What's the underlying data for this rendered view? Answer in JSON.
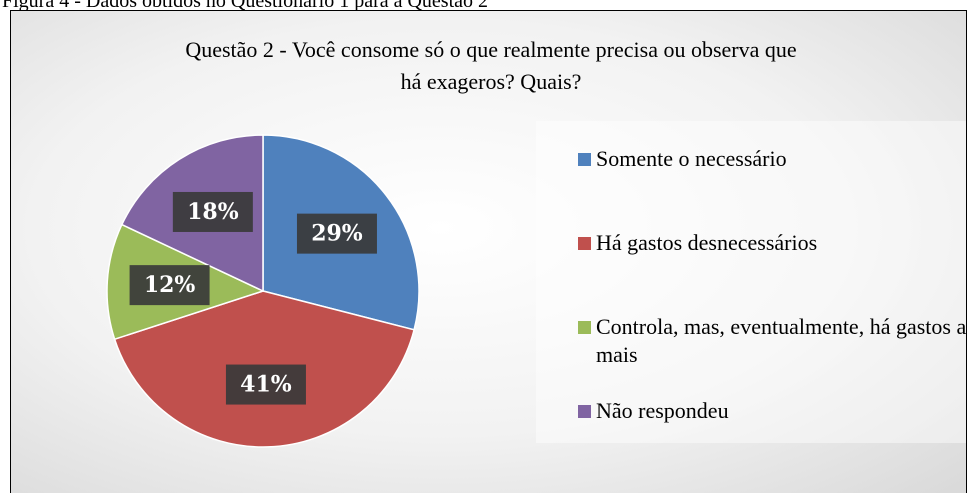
{
  "caption": "Figura 4 - Dados obtidos no Questionário 1 para a Questão 2",
  "chart_data": {
    "type": "pie",
    "title": [
      "Questão 2 - Você consome só o que realmente precisa ou observa que",
      "há exageros? Quais?"
    ],
    "categories": [
      "Somente o necessário",
      "Há gastos desnecessários",
      "Controla, mas, eventualmente, há gastos a mais",
      "Não respondeu"
    ],
    "values": [
      29,
      41,
      12,
      18
    ],
    "value_labels": [
      "29%",
      "41%",
      "12%",
      "18%"
    ],
    "colors": [
      "#4f81bd",
      "#c0504d",
      "#9bbb59",
      "#8064a2"
    ]
  }
}
